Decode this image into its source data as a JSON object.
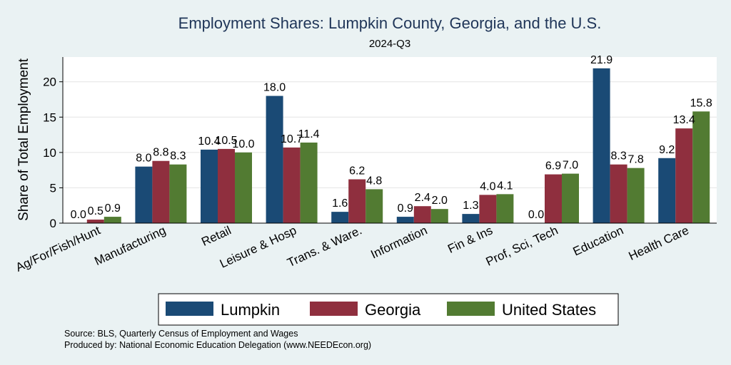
{
  "chart_data": {
    "type": "bar",
    "title": "Employment Shares: Lumpkin County, Georgia, and the U.S.",
    "subtitle": "2024-Q3",
    "ylabel": "Share of Total Employment",
    "xlabel": "",
    "ylim": [
      0,
      23.5
    ],
    "yticks": [
      0,
      5,
      10,
      15,
      20
    ],
    "grid": true,
    "legend_position": "bottom",
    "categories": [
      "Ag/For/Fish/Hunt",
      "Manufacturing",
      "Retail",
      "Leisure & Hosp",
      "Trans. & Ware.",
      "Information",
      "Fin & Ins",
      "Prof, Sci, Tech",
      "Education",
      "Health Care"
    ],
    "series": [
      {
        "name": "Lumpkin",
        "color": "#1a4a75",
        "values": [
          0.0,
          8.0,
          10.4,
          18.0,
          1.6,
          0.9,
          1.3,
          0.0,
          21.9,
          9.2
        ],
        "labels": [
          "0.0",
          "8.0",
          "10.4",
          "18.0",
          "1.6",
          "0.9",
          "1.3",
          "0.0",
          "21.9",
          "9.2"
        ]
      },
      {
        "name": "Georgia",
        "color": "#8f2f3e",
        "values": [
          0.5,
          8.8,
          10.5,
          10.7,
          6.2,
          2.4,
          4.0,
          6.9,
          8.3,
          13.4
        ],
        "labels": [
          "0.5",
          "8.8",
          "10.5",
          "10.7",
          "6.2",
          "2.4",
          "4.0",
          "6.9",
          "8.3",
          "13.4"
        ]
      },
      {
        "name": "United States",
        "color": "#527b32",
        "values": [
          0.9,
          8.3,
          10.0,
          11.4,
          4.8,
          2.0,
          4.1,
          7.0,
          7.8,
          15.8
        ],
        "labels": [
          "0.9",
          "8.3",
          "10.0",
          "11.4",
          "4.8",
          "2.0",
          "4.1",
          "7.0",
          "7.8",
          "15.8"
        ]
      }
    ],
    "notes": [
      "Source: BLS, Quarterly Census of Employment and Wages",
      "Produced by: National Economic Education Delegation (www.NEEDEcon.org)"
    ]
  }
}
